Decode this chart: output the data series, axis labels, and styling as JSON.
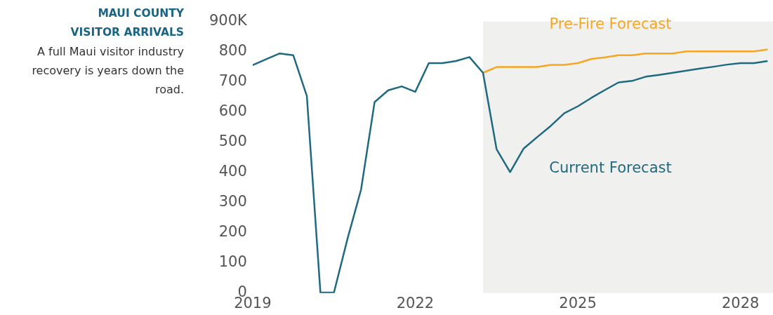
{
  "chart_data": {
    "type": "line",
    "title": "MAUI COUNTY VISITOR ARRIVALS",
    "subtitle": "A full Maui visitor industry recovery is years down the road.",
    "xlim": [
      2019,
      2028.6
    ],
    "xticks": [
      2019,
      2022,
      2025,
      2028
    ],
    "ylim": [
      0,
      900
    ],
    "yticks": [
      0,
      100,
      200,
      300,
      400,
      500,
      600,
      700,
      800,
      {
        "value": 900,
        "label": "900K"
      }
    ],
    "grid": false,
    "legend": false,
    "marker": "none",
    "line_style": "solid",
    "bands": [
      {
        "axis": "x",
        "from": 2023.25,
        "to": 2028.6,
        "color": "#f0f0ee"
      }
    ],
    "series": [
      {
        "name": "Current Forecast",
        "color": "#1f6a80",
        "x": [
          2019,
          2019.25,
          2019.5,
          2019.75,
          2020,
          2020.25,
          2020.5,
          2020.75,
          2021,
          2021.25,
          2021.5,
          2021.75,
          2022,
          2022.25,
          2022.5,
          2022.75,
          2023,
          2023.25,
          2023.5,
          2023.75,
          2024,
          2024.25,
          2024.5,
          2024.75,
          2025,
          2025.25,
          2025.5,
          2025.75,
          2026,
          2026.25,
          2026.5,
          2026.75,
          2027,
          2027.25,
          2027.5,
          2027.75,
          2028,
          2028.25,
          2028.5
        ],
        "values": [
          755,
          775,
          794,
          788,
          653,
          2,
          2,
          180,
          343,
          633,
          672,
          685,
          667,
          762,
          762,
          769,
          782,
          730,
          477,
          401,
          479,
          517,
          554,
          596,
          619,
          647,
          673,
          698,
          703,
          717,
          723,
          730,
          737,
          744,
          750,
          757,
          762,
          762,
          769
        ]
      },
      {
        "name": "Pre-Fire Forecast",
        "color": "#f5a623",
        "x": [
          2023.25,
          2023.5,
          2023.75,
          2024,
          2024.25,
          2024.5,
          2024.75,
          2025,
          2025.25,
          2025.5,
          2025.75,
          2026,
          2026.25,
          2026.5,
          2026.75,
          2027,
          2027.25,
          2027.5,
          2027.75,
          2028,
          2028.25,
          2028.5
        ],
        "values": [
          730,
          749,
          749,
          749,
          749,
          756,
          756,
          762,
          776,
          781,
          788,
          788,
          794,
          794,
          794,
          801,
          801,
          801,
          801,
          801,
          801,
          807
        ]
      }
    ]
  }
}
